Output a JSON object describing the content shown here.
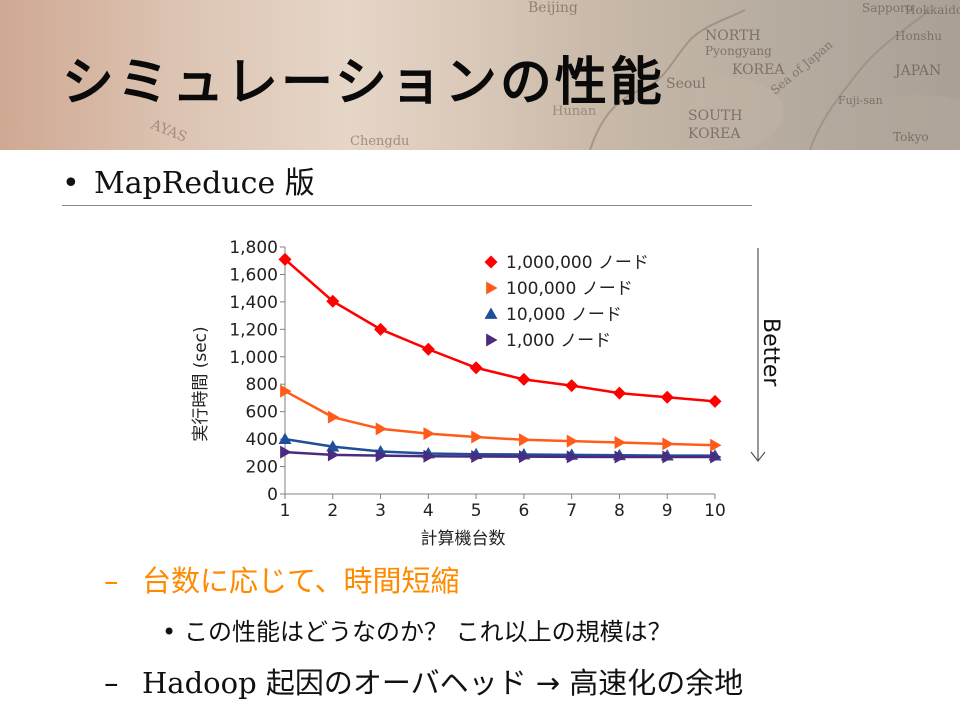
{
  "header": {
    "title": "シミュレーションの性能",
    "map_labels": [
      "Beijing",
      "NORTH",
      "Pyongyang",
      "KOREA",
      "Seoul",
      "SOUTH",
      "KOREA",
      "JAPAN",
      "Sea of Japan",
      "Tokyo",
      "Sapporo",
      "Hokkaido",
      "Honshu",
      "Fuji-san",
      "Chengdu",
      "Hunan",
      "AYAS"
    ],
    "map_label_note": "decorative photo background with faint map lettering"
  },
  "bullet_main": {
    "text": "MapReduce 版"
  },
  "chart_data": {
    "type": "line",
    "title": "",
    "xlabel": "計算機台数",
    "ylabel": "実行時間 (sec)",
    "categories": [
      1,
      2,
      3,
      4,
      5,
      6,
      7,
      8,
      9,
      10
    ],
    "ylim": [
      0,
      1800
    ],
    "yticks": [
      0,
      200,
      400,
      600,
      800,
      1000,
      1200,
      1400,
      1600,
      1800
    ],
    "ytick_labels": [
      "0",
      "200",
      "400",
      "600",
      "800",
      "1,000",
      "1,200",
      "1,400",
      "1,600",
      "1,800"
    ],
    "grid": false,
    "legend_position": "top-right",
    "series": [
      {
        "name": "1,000,000 ノード",
        "marker": "diamond",
        "color": "#ff0000",
        "values": [
          1710,
          1405,
          1200,
          1055,
          920,
          835,
          790,
          735,
          705,
          675
        ]
      },
      {
        "name": "100,000 ノード",
        "marker": "triangle-right",
        "color": "#ff5c1a",
        "values": [
          750,
          560,
          475,
          440,
          415,
          395,
          385,
          375,
          365,
          355
        ]
      },
      {
        "name": "10,000 ノード",
        "marker": "triangle-up",
        "color": "#1f4e9a",
        "values": [
          400,
          345,
          310,
          295,
          290,
          288,
          285,
          282,
          280,
          280
        ]
      },
      {
        "name": "1,000 ノード",
        "marker": "triangle-right",
        "color": "#4b2b7f",
        "values": [
          305,
          285,
          280,
          275,
          273,
          272,
          271,
          270,
          270,
          270
        ]
      }
    ],
    "annotation": {
      "text": "Better",
      "direction": "down"
    }
  },
  "sub_bullets": [
    {
      "text": "台数に応じて、時間短縮",
      "color": "#ff8a00"
    },
    {
      "text": "この性能はどうなのか？ これ以上の規模は？"
    },
    {
      "text_serif": "Hadoop",
      "text": "起因のオーバヘッド → 高速化の余地"
    }
  ],
  "symbols": {
    "dash": "–",
    "bullet": "•"
  }
}
